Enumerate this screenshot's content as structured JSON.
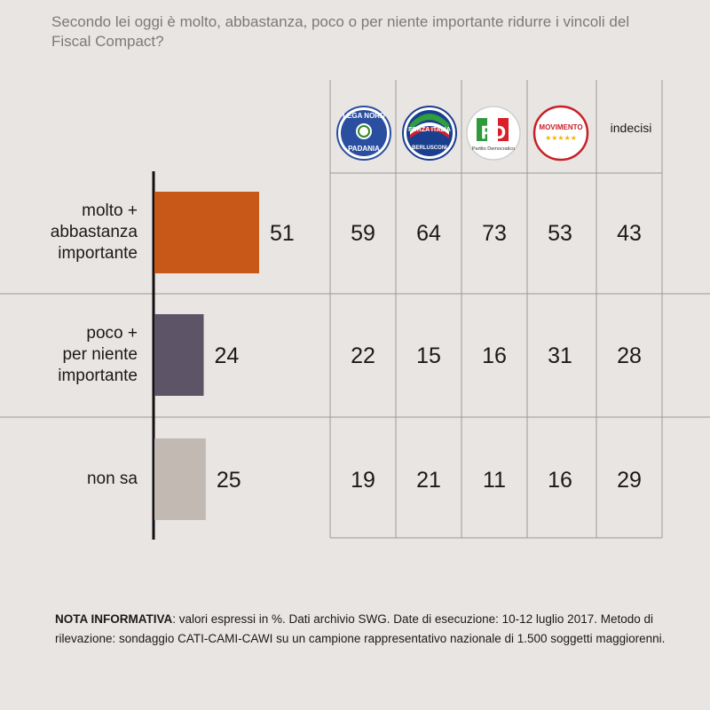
{
  "question": "Secondo lei oggi è molto, abbastanza, poco o per niente importante ridurre i vincoli del Fiscal Compact?",
  "columns": [
    {
      "name": "lega-nord",
      "logo_text_top": "LEGA NORD",
      "logo_text_bottom": "PADANIA",
      "icon": "lega-nord-logo"
    },
    {
      "name": "forza-italia",
      "logo_text_top": "FORZA ITALIA",
      "logo_text_bottom": "BERLUSCONI",
      "icon": "forza-italia-logo"
    },
    {
      "name": "partito-democratico",
      "logo_text_top": "PD",
      "logo_text_bottom": "Partito Democratico",
      "icon": "pd-logo"
    },
    {
      "name": "movimento-5-stelle",
      "logo_text_top": "MOVIMENTO",
      "logo_text_bottom": "★★★★★",
      "icon": "m5s-logo"
    },
    {
      "name": "indecisi",
      "label": "indecisi"
    }
  ],
  "chart_data": {
    "type": "bar",
    "orientation": "horizontal",
    "categories": [
      "molto +\nabbastanza\nimportante",
      "poco +\nper niente\nimportante",
      "non sa"
    ],
    "values": [
      51,
      24,
      25
    ],
    "colors": [
      "#c85817",
      "#5e5467",
      "#c2b9b2"
    ],
    "table": {
      "columns": [
        "Lega Nord",
        "Forza Italia",
        "Partito Democratico",
        "Movimento 5 Stelle",
        "indecisi"
      ],
      "rows": [
        [
          59,
          64,
          73,
          53,
          43
        ],
        [
          22,
          15,
          16,
          31,
          28
        ],
        [
          19,
          21,
          11,
          16,
          29
        ]
      ]
    }
  },
  "note": {
    "bold": "NOTA INFORMATIVA",
    "text": ": valori espressi in %. Dati archivio SWG. Date di esecuzione: 10-12 luglio 2017. Metodo di rilevazione: sondaggio CATI-CAMI-CAWI su un campione rappresentativo nazionale di 1.500 soggetti maggiorenni."
  }
}
